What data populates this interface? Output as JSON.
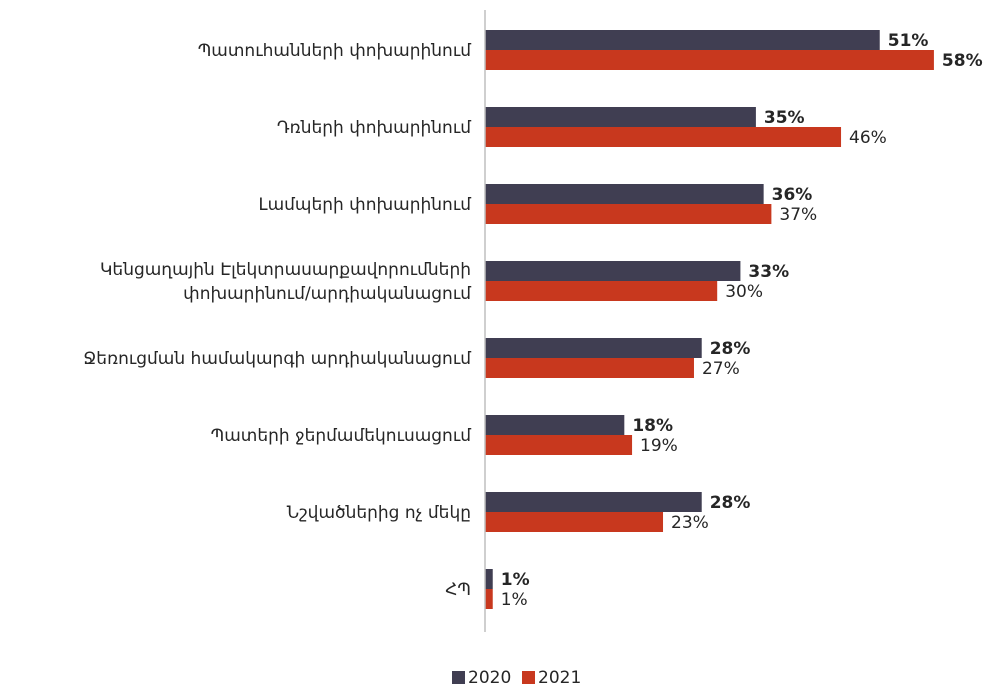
{
  "chart_data": {
    "type": "bar",
    "orientation": "horizontal",
    "categories": [
      [
        "Պատուհանների փոխարինում"
      ],
      [
        "Դռների փոխարինում"
      ],
      [
        "Լամպերի փոխարինում"
      ],
      [
        "Կենցաղային Էլեկտրասարքավորումների",
        "փոխարինում/արդիականացում"
      ],
      [
        "Ջեռուցման համակարգի արդիականացում"
      ],
      [
        "Պատերի ջերմամեկուսացում"
      ],
      [
        "Նշվածներից ոչ մեկը"
      ],
      [
        "ՀՊ"
      ]
    ],
    "series": [
      {
        "name": "2020",
        "color": "#403e52",
        "values": [
          51,
          35,
          36,
          33,
          28,
          18,
          28,
          1
        ],
        "labels": [
          "51%",
          "35%",
          "36%",
          "33%",
          "28%",
          "18%",
          "28%",
          "1%"
        ],
        "bold": [
          true,
          true,
          true,
          true,
          true,
          true,
          true,
          true
        ]
      },
      {
        "name": "2021",
        "color": "#c8381e",
        "values": [
          58,
          46,
          37,
          30,
          27,
          19,
          23,
          1
        ],
        "labels": [
          "58%",
          "46%",
          "37%",
          "30%",
          "27%",
          "19%",
          "23%",
          "1%"
        ],
        "bold": [
          true,
          false,
          false,
          false,
          false,
          false,
          false,
          false
        ]
      }
    ],
    "xlim": [
      0,
      58
    ],
    "grid": false,
    "legend_position": "bottom",
    "axis_color": "#bfbfbf"
  }
}
